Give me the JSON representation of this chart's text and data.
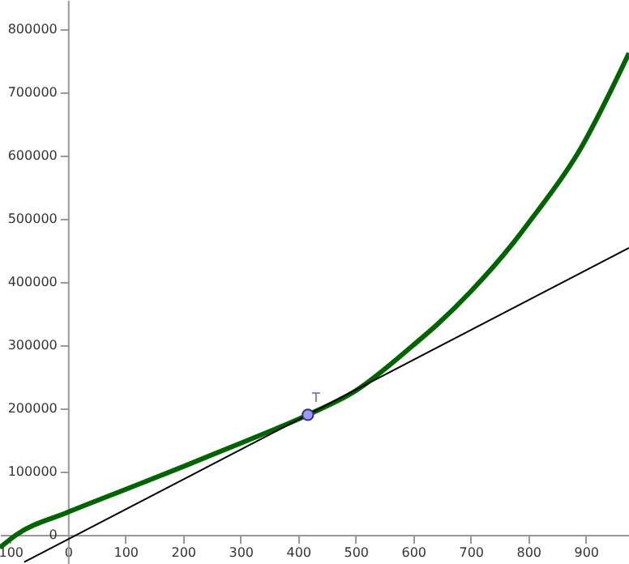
{
  "chart_data": {
    "type": "line",
    "xlim": [
      -118,
      975
    ],
    "ylim": [
      -46000,
      846000
    ],
    "xticks": [
      {
        "value": -100,
        "label": "100"
      },
      0,
      100,
      200,
      300,
      400,
      500,
      600,
      700,
      800,
      900
    ],
    "yticks": [
      0,
      100000,
      200000,
      300000,
      400000,
      500000,
      600000,
      700000,
      800000
    ],
    "annotations": [
      {
        "text": "T",
        "x": 417,
        "y": 190000
      }
    ],
    "series": [
      {
        "color": "#006400",
        "x": [
          -118,
          -90,
          0,
          100,
          200,
          300,
          417,
          500,
          600,
          642,
          700,
          774,
          800,
          887,
          975
        ],
        "values": [
          -20000,
          0,
          36000,
          72000,
          108000,
          145000,
          190000,
          228000,
          300000,
          333000,
          385000,
          462000,
          493000,
          605000,
          762000
        ]
      },
      {
        "type": "line",
        "color": "#000000",
        "x": [
          -76,
          975
        ],
        "values": [
          -43000,
          454000
        ]
      },
      {
        "type": "scatter",
        "color": "#9999ff",
        "marker": "circle",
        "x": [
          417
        ],
        "values": [
          190000
        ]
      }
    ]
  }
}
